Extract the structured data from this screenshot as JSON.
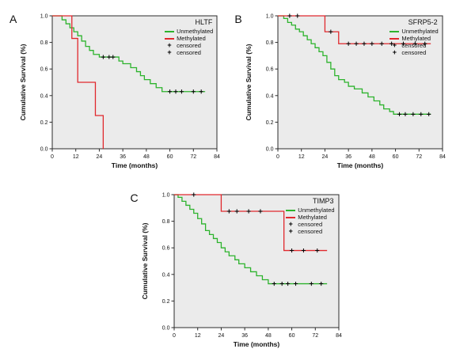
{
  "colors": {
    "unmethylated": "#2db32d",
    "methylated": "#e0282d",
    "censored": "#000000",
    "plot_bg": "#ebebeb",
    "frame": "#2b2b2b"
  },
  "chart_data": [
    {
      "type": "line",
      "panel_label": "A",
      "title": "HLTF",
      "xlabel": "Time (months)",
      "ylabel": "Cumulative Survival (%)",
      "xlim": [
        0,
        84
      ],
      "ylim": [
        0,
        1.0
      ],
      "xticks": [
        0,
        12,
        24,
        36,
        48,
        60,
        72,
        84
      ],
      "yticks": [
        0.0,
        0.2,
        0.4,
        0.6,
        0.8,
        1.0
      ],
      "legend": [
        {
          "label": "Unmethylated",
          "marker": "line",
          "color": "#2db32d"
        },
        {
          "label": "Methylated",
          "marker": "line",
          "color": "#e0282d"
        },
        {
          "label": "censored",
          "marker": "plus",
          "color": "#000000"
        },
        {
          "label": "censored",
          "marker": "plus",
          "color": "#000000"
        }
      ],
      "series": [
        {
          "name": "Unmethylated",
          "color": "#2db32d",
          "end": 78,
          "points": [
            [
              0,
              1.0
            ],
            [
              5,
              0.97
            ],
            [
              7,
              0.94
            ],
            [
              9,
              0.91
            ],
            [
              11,
              0.88
            ],
            [
              13,
              0.85
            ],
            [
              15,
              0.81
            ],
            [
              17,
              0.77
            ],
            [
              19,
              0.74
            ],
            [
              21,
              0.71
            ],
            [
              24,
              0.69
            ],
            [
              34,
              0.66
            ],
            [
              36,
              0.64
            ],
            [
              40,
              0.61
            ],
            [
              43,
              0.58
            ],
            [
              45,
              0.55
            ],
            [
              47,
              0.52
            ],
            [
              50,
              0.49
            ],
            [
              53,
              0.46
            ],
            [
              56,
              0.43
            ]
          ],
          "censored": [
            [
              26,
              0.69
            ],
            [
              29,
              0.69
            ],
            [
              31,
              0.69
            ],
            [
              60,
              0.43
            ],
            [
              63,
              0.43
            ],
            [
              66,
              0.43
            ],
            [
              72,
              0.43
            ],
            [
              76,
              0.43
            ]
          ]
        },
        {
          "name": "Methylated",
          "color": "#e0282d",
          "end": 26,
          "points": [
            [
              0,
              1.0
            ],
            [
              10,
              0.83
            ],
            [
              13,
              0.5
            ],
            [
              22,
              0.25
            ],
            [
              26,
              0.0
            ]
          ],
          "censored": []
        }
      ]
    },
    {
      "type": "line",
      "panel_label": "B",
      "title": "SFRP5-2",
      "xlabel": "Time (months)",
      "ylabel": "Cumulative Survival (%)",
      "xlim": [
        0,
        84
      ],
      "ylim": [
        0,
        1.0
      ],
      "xticks": [
        0,
        12,
        24,
        36,
        48,
        60,
        72,
        84
      ],
      "yticks": [
        0.0,
        0.2,
        0.4,
        0.6,
        0.8,
        1.0
      ],
      "legend": [
        {
          "label": "Unmethylated",
          "marker": "line",
          "color": "#2db32d"
        },
        {
          "label": "Methylated",
          "marker": "line",
          "color": "#e0282d"
        },
        {
          "label": "censored",
          "marker": "plus",
          "color": "#000000"
        },
        {
          "label": "censored",
          "marker": "plus",
          "color": "#000000"
        }
      ],
      "series": [
        {
          "name": "Unmethylated",
          "color": "#2db32d",
          "end": 78,
          "points": [
            [
              0,
              1.0
            ],
            [
              3,
              0.98
            ],
            [
              5,
              0.95
            ],
            [
              7,
              0.93
            ],
            [
              9,
              0.9
            ],
            [
              11,
              0.88
            ],
            [
              13,
              0.85
            ],
            [
              15,
              0.82
            ],
            [
              17,
              0.79
            ],
            [
              19,
              0.76
            ],
            [
              21,
              0.73
            ],
            [
              23,
              0.7
            ],
            [
              25,
              0.65
            ],
            [
              27,
              0.6
            ],
            [
              29,
              0.55
            ],
            [
              31,
              0.52
            ],
            [
              34,
              0.5
            ],
            [
              36,
              0.47
            ],
            [
              39,
              0.45
            ],
            [
              43,
              0.42
            ],
            [
              46,
              0.39
            ],
            [
              49,
              0.36
            ],
            [
              52,
              0.33
            ],
            [
              54,
              0.3
            ],
            [
              57,
              0.28
            ],
            [
              59,
              0.26
            ]
          ],
          "censored": [
            [
              62,
              0.26
            ],
            [
              65,
              0.26
            ],
            [
              69,
              0.26
            ],
            [
              73,
              0.26
            ],
            [
              77,
              0.26
            ]
          ]
        },
        {
          "name": "Methylated",
          "color": "#e0282d",
          "end": 78,
          "points": [
            [
              0,
              1.0
            ],
            [
              24,
              0.88
            ],
            [
              31,
              0.79
            ]
          ],
          "censored": [
            [
              6,
              1.0
            ],
            [
              10,
              1.0
            ],
            [
              27,
              0.88
            ],
            [
              36,
              0.79
            ],
            [
              40,
              0.79
            ],
            [
              44,
              0.79
            ],
            [
              48,
              0.79
            ],
            [
              53,
              0.79
            ],
            [
              58,
              0.79
            ],
            [
              64,
              0.79
            ],
            [
              70,
              0.79
            ],
            [
              75,
              0.79
            ]
          ]
        }
      ]
    },
    {
      "type": "line",
      "panel_label": "C",
      "title": "TIMP3",
      "xlabel": "Time (months)",
      "ylabel": "Cumulative Survival (%)",
      "xlim": [
        0,
        84
      ],
      "ylim": [
        0,
        1.0
      ],
      "xticks": [
        0,
        12,
        24,
        36,
        48,
        60,
        72,
        84
      ],
      "yticks": [
        0.0,
        0.2,
        0.4,
        0.6,
        0.8,
        1.0
      ],
      "legend": [
        {
          "label": "Unmethylated",
          "marker": "line",
          "color": "#2db32d"
        },
        {
          "label": "Methylated",
          "marker": "line",
          "color": "#e0282d"
        },
        {
          "label": "censored",
          "marker": "plus",
          "color": "#000000"
        },
        {
          "label": "censored",
          "marker": "plus",
          "color": "#000000"
        }
      ],
      "series": [
        {
          "name": "Unmethylated",
          "color": "#2db32d",
          "end": 78,
          "points": [
            [
              0,
              1.0
            ],
            [
              2,
              0.98
            ],
            [
              4,
              0.95
            ],
            [
              6,
              0.92
            ],
            [
              8,
              0.89
            ],
            [
              10,
              0.86
            ],
            [
              12,
              0.82
            ],
            [
              14,
              0.78
            ],
            [
              16,
              0.73
            ],
            [
              18,
              0.7
            ],
            [
              20,
              0.67
            ],
            [
              22,
              0.64
            ],
            [
              24,
              0.6
            ],
            [
              26,
              0.57
            ],
            [
              28,
              0.54
            ],
            [
              31,
              0.51
            ],
            [
              33,
              0.48
            ],
            [
              36,
              0.45
            ],
            [
              39,
              0.42
            ],
            [
              42,
              0.39
            ],
            [
              45,
              0.36
            ],
            [
              48,
              0.33
            ]
          ],
          "censored": [
            [
              51,
              0.33
            ],
            [
              55,
              0.33
            ],
            [
              58,
              0.33
            ],
            [
              62,
              0.33
            ],
            [
              70,
              0.33
            ],
            [
              75,
              0.33
            ]
          ]
        },
        {
          "name": "Methylated",
          "color": "#e0282d",
          "end": 78,
          "points": [
            [
              0,
              1.0
            ],
            [
              24,
              0.875
            ],
            [
              56,
              0.58
            ]
          ],
          "censored": [
            [
              10,
              1.0
            ],
            [
              28,
              0.875
            ],
            [
              32,
              0.875
            ],
            [
              38,
              0.875
            ],
            [
              44,
              0.875
            ],
            [
              60,
              0.58
            ],
            [
              66,
              0.58
            ],
            [
              73,
              0.58
            ]
          ]
        }
      ]
    }
  ]
}
